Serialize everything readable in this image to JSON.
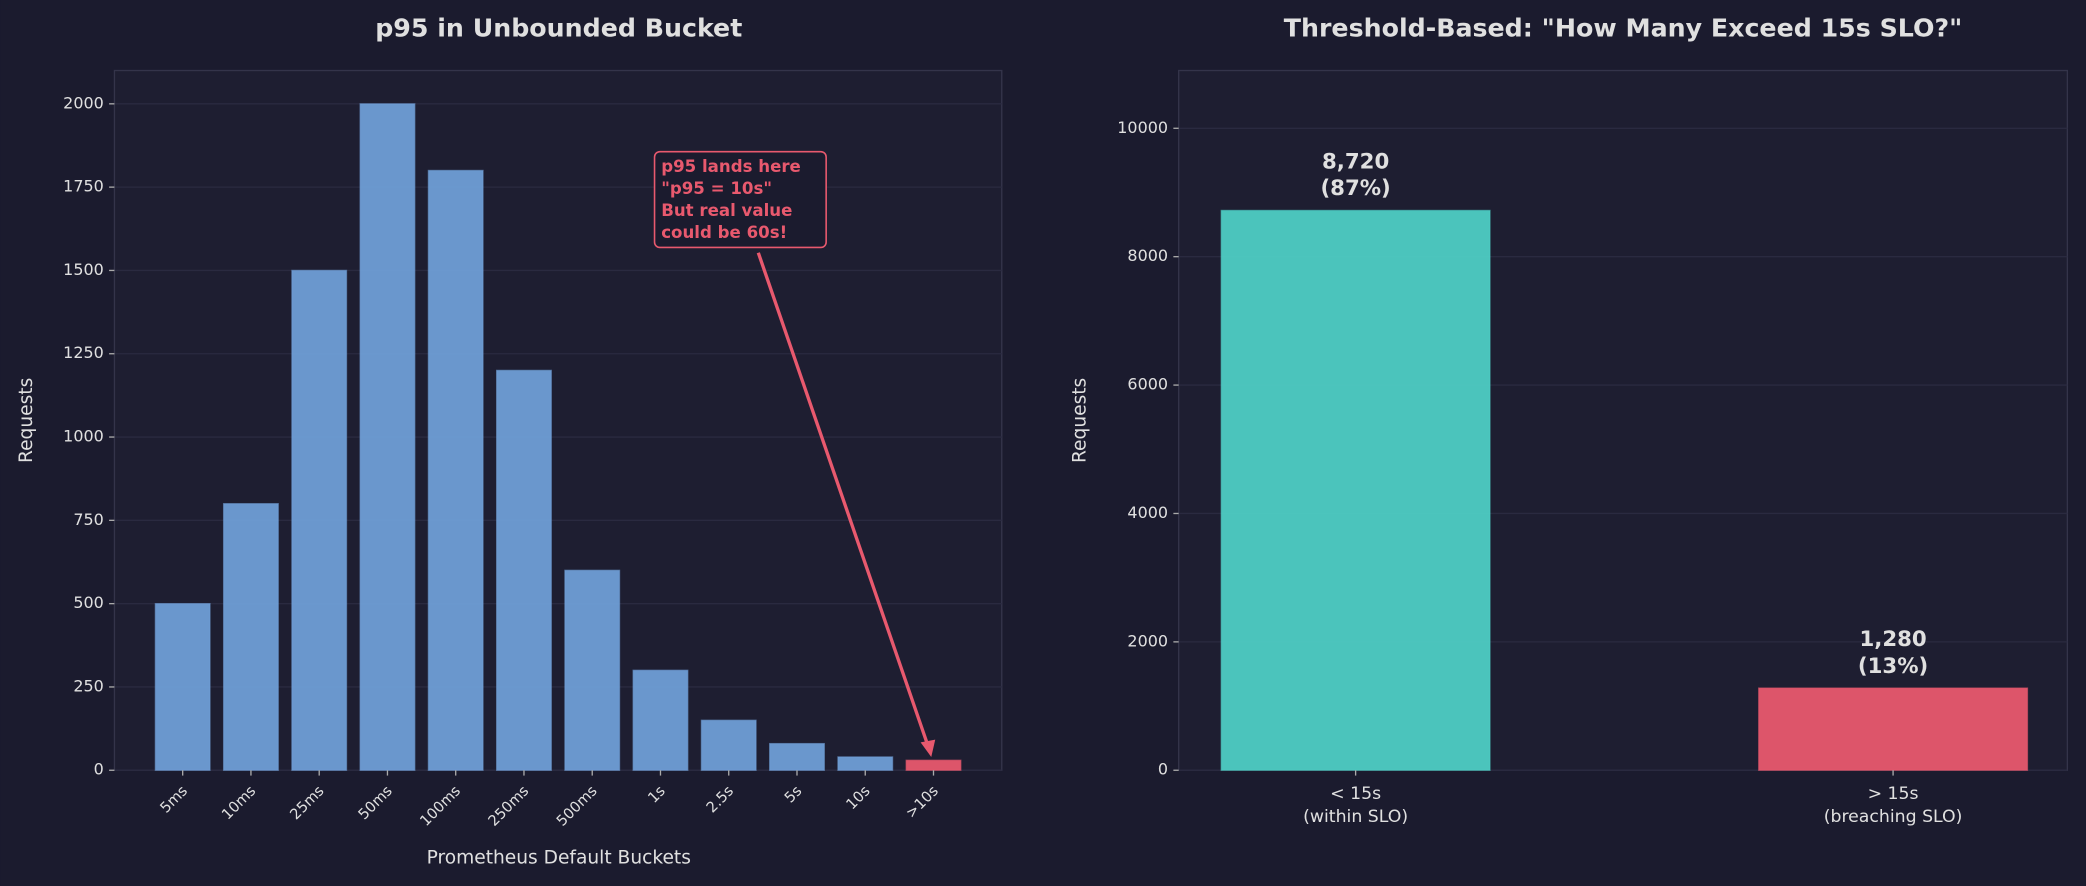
{
  "chart_data": [
    {
      "type": "bar",
      "title": "p95 in Unbounded Bucket",
      "xlabel": "Prometheus Default Buckets",
      "ylabel": "Requests",
      "categories": [
        "5ms",
        "10ms",
        "25ms",
        "50ms",
        "100ms",
        "250ms",
        "500ms",
        "1s",
        "2.5s",
        "5s",
        "10s",
        ">10s"
      ],
      "values": [
        500,
        800,
        1500,
        2000,
        1800,
        1200,
        600,
        300,
        150,
        80,
        40,
        30
      ],
      "colors": [
        "#6f9ed6",
        "#6f9ed6",
        "#6f9ed6",
        "#6f9ed6",
        "#6f9ed6",
        "#6f9ed6",
        "#6f9ed6",
        "#6f9ed6",
        "#6f9ed6",
        "#6f9ed6",
        "#6f9ed6",
        "#e8596e"
      ],
      "ylim": [
        0,
        2100
      ],
      "yticks": [
        0,
        250,
        500,
        750,
        1000,
        1250,
        1500,
        1750,
        2000
      ],
      "grid": true,
      "annotation": [
        "p95 lands here",
        "\"p95 = 10s\"",
        "But real value",
        "could be 60s!"
      ]
    },
    {
      "type": "bar",
      "title": "Threshold-Based: \"How Many Exceed 15s SLO?\"",
      "ylabel": "Requests",
      "categories": [
        "< 15s\n(within SLO)",
        "> 15s\n(breaching SLO)"
      ],
      "values": [
        8720,
        1280
      ],
      "value_labels": [
        "8,720\n(87%)",
        "1,280\n(13%)"
      ],
      "colors": [
        "#4ecdc4",
        "#e8596e"
      ],
      "ylim": [
        0,
        10900
      ],
      "yticks": [
        0,
        2000,
        4000,
        6000,
        8000,
        10000
      ],
      "grid": true
    }
  ]
}
